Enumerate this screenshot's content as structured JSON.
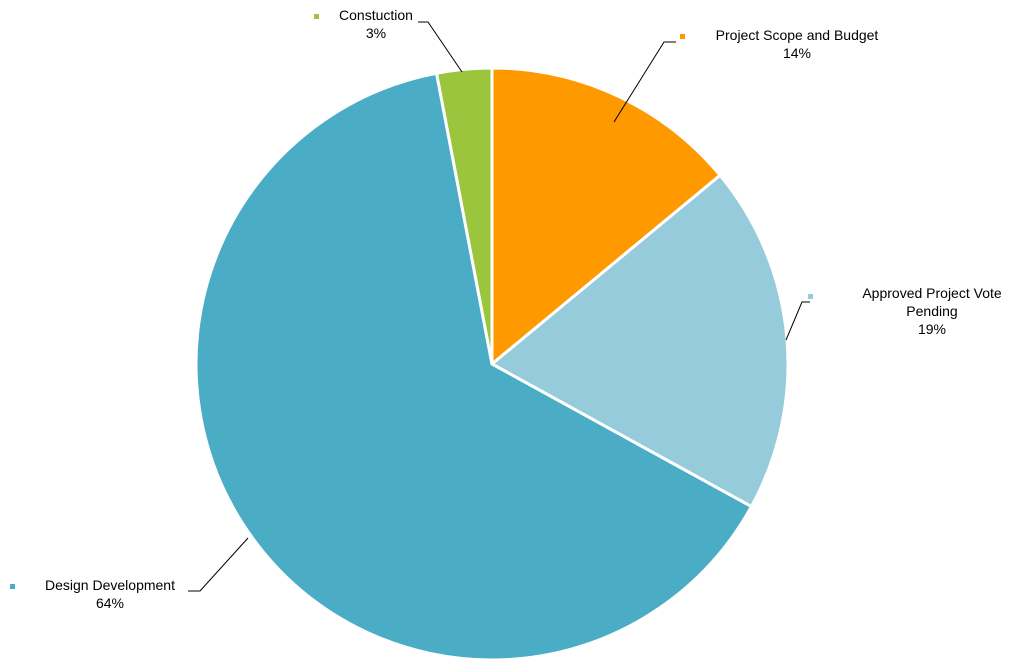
{
  "chart_data": {
    "type": "pie",
    "title": "",
    "slices": [
      {
        "label_lines": [
          "Project Scope and Budget"
        ],
        "value": 14,
        "value_label": "14%",
        "color": "#FF9900"
      },
      {
        "label_lines": [
          "Approved Project Vote",
          "Pending"
        ],
        "value": 19,
        "value_label": "19%",
        "color": "#95CBDB"
      },
      {
        "label_lines": [
          "Design Development"
        ],
        "value": 64,
        "value_label": "64%",
        "color": "#4BACC6"
      },
      {
        "label_lines": [
          "Constuction"
        ],
        "value": 3,
        "value_label": "3%",
        "color": "#9BC53D"
      }
    ],
    "start_angle_deg": 0,
    "direction": "clockwise",
    "legend": "none"
  }
}
